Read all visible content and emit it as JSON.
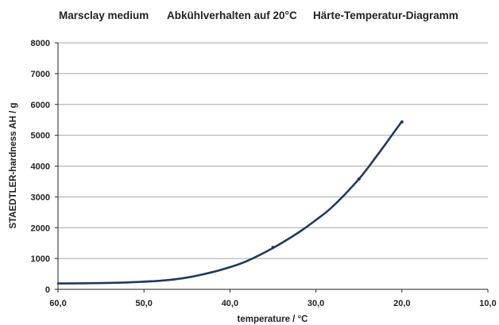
{
  "chart_data": {
    "type": "line",
    "titles": [
      "Marsclay medium",
      "Abkühlverhalten auf 20°C",
      "Härte-Temperatur-Diagramm"
    ],
    "xlabel": "temperature / °C",
    "ylabel": "STAEDTLER-hardness  AH / g",
    "xlim": [
      60,
      10
    ],
    "ylim": [
      0,
      8000
    ],
    "x_ticks": [
      "60,0",
      "50,0",
      "40,0",
      "30,0",
      "20,0",
      "10,0"
    ],
    "y_ticks": [
      "0",
      "1000",
      "2000",
      "3000",
      "4000",
      "5000",
      "6000",
      "7000",
      "8000"
    ],
    "x_axis_reversed": true,
    "grid": "horizontal",
    "line_color": "#1f3a5f",
    "series": [
      {
        "x": [
          60,
          56,
          52,
          48,
          45,
          42,
          40,
          38,
          35,
          32,
          30,
          28,
          25,
          23,
          22,
          20
        ],
        "values": [
          190,
          200,
          225,
          280,
          380,
          560,
          720,
          920,
          1340,
          1850,
          2250,
          2700,
          3580,
          4300,
          4680,
          5450
        ]
      }
    ],
    "markers": [
      {
        "x": 35,
        "y": 1360
      },
      {
        "x": 25,
        "y": 3580
      },
      {
        "x": 20,
        "y": 5430
      }
    ]
  }
}
